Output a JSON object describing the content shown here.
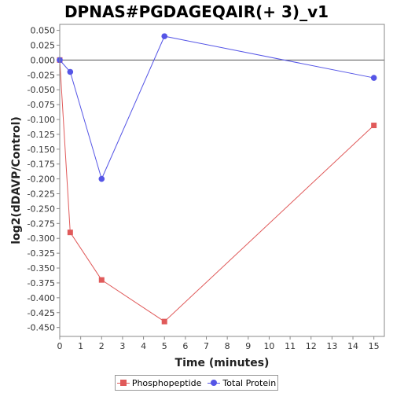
{
  "chart_data": {
    "type": "line",
    "title": "DPNAS#PGDAGEQAIR(+ 3)_v1",
    "xlabel": "Time (minutes)",
    "ylabel": "log2(dDAVP/Control)",
    "xlim": [
      0,
      15.5
    ],
    "ylim": [
      -0.465,
      0.06
    ],
    "x_ticks": [
      0,
      1,
      2,
      3,
      4,
      5,
      6,
      7,
      8,
      9,
      10,
      11,
      12,
      13,
      14,
      15
    ],
    "x_tick_labels": [
      "0",
      "1",
      "2",
      "3",
      "4",
      "5",
      "6",
      "7",
      "8",
      "9",
      "10",
      "11",
      "12",
      "13",
      "14",
      "15"
    ],
    "y_ticks": [
      0.05,
      0.025,
      0.0,
      -0.025,
      -0.05,
      -0.075,
      -0.1,
      -0.125,
      -0.15,
      -0.175,
      -0.2,
      -0.225,
      -0.25,
      -0.275,
      -0.3,
      -0.325,
      -0.35,
      -0.375,
      -0.4,
      -0.425,
      -0.45
    ],
    "y_tick_labels": [
      "0.050",
      "0.025",
      "0.000",
      "-0.025",
      "-0.050",
      "-0.075",
      "-0.100",
      "-0.125",
      "-0.150",
      "-0.175",
      "-0.200",
      "-0.225",
      "-0.250",
      "-0.275",
      "-0.300",
      "-0.325",
      "-0.350",
      "-0.375",
      "-0.400",
      "-0.425",
      "-0.450"
    ],
    "zero_line": true,
    "grid": false,
    "legend_position": "bottom",
    "series": [
      {
        "name": "Phosphopeptide",
        "color": "#e05a5a",
        "marker": "square",
        "x": [
          0,
          0.5,
          2,
          5,
          15
        ],
        "y": [
          0.0,
          -0.29,
          -0.37,
          -0.44,
          -0.11
        ]
      },
      {
        "name": "Total Protein",
        "color": "#5555e6",
        "marker": "circle",
        "x": [
          0,
          0.5,
          2,
          5,
          15
        ],
        "y": [
          0.0,
          -0.02,
          -0.2,
          0.04,
          -0.03
        ]
      }
    ]
  }
}
